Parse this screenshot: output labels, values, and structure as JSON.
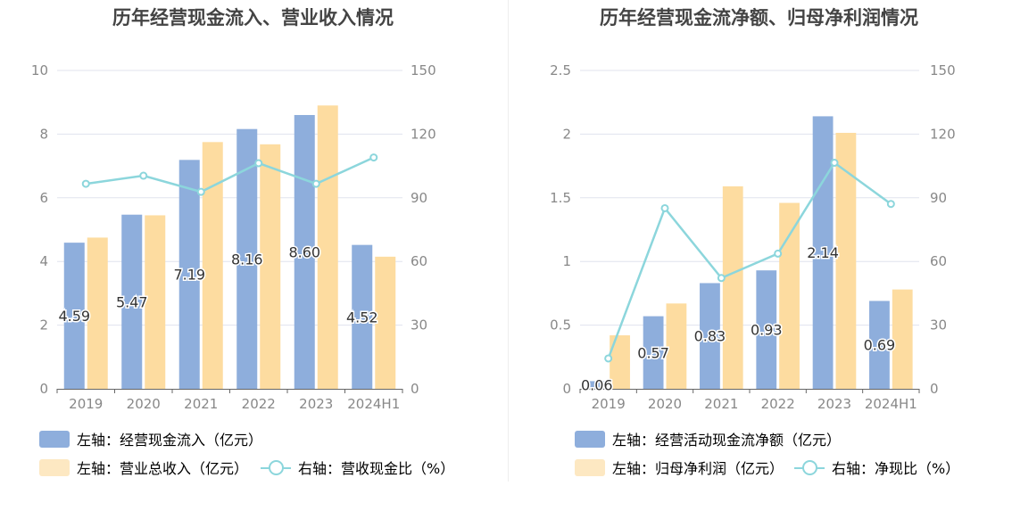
{
  "charts": [
    {
      "title": "历年经营现金流入、营业收入情况",
      "legend": [
        {
          "label": "左轴：经营现金流入（亿元）",
          "kind": "bar",
          "color": "#8eaedc"
        },
        {
          "label": "左轴：营业总收入（亿元）",
          "kind": "bar",
          "color": "#fde4b3"
        },
        {
          "label": "右轴：营收现金比（%）",
          "kind": "line",
          "color": "#8cd6dc"
        }
      ]
    },
    {
      "title": "历年经营现金流净额、归母净利润情况",
      "legend": [
        {
          "label": "左轴：经营活动现金流净额（亿元）",
          "kind": "bar",
          "color": "#8eaedc"
        },
        {
          "label": "左轴：归母净利润（亿元）",
          "kind": "bar",
          "color": "#fde4b3"
        },
        {
          "label": "右轴：净现比（%）",
          "kind": "line",
          "color": "#8cd6dc"
        }
      ]
    }
  ],
  "chart_data": [
    {
      "type": "bar",
      "title": "历年经营现金流入、营业收入情况",
      "categories": [
        "2019",
        "2020",
        "2021",
        "2022",
        "2023",
        "2024H1"
      ],
      "y_left": {
        "range": [
          0,
          10
        ],
        "ticks": [
          "0",
          "2",
          "4",
          "6",
          "8",
          "10"
        ]
      },
      "y_right": {
        "range": [
          0,
          150
        ],
        "ticks": [
          "0",
          "30",
          "60",
          "90",
          "120",
          "150"
        ]
      },
      "series": [
        {
          "name": "左轴：经营现金流入（亿元）",
          "type": "bar",
          "axis": "left",
          "color": "#8eaedc",
          "values": [
            4.59,
            5.47,
            7.19,
            8.16,
            8.6,
            4.52
          ],
          "labels": [
            "4.59",
            "5.47",
            "7.19",
            "8.16",
            "8.60",
            "4.52"
          ]
        },
        {
          "name": "左轴：营业总收入（亿元）",
          "type": "bar",
          "axis": "left",
          "color": "#fddca0",
          "values": [
            4.75,
            5.45,
            7.75,
            7.68,
            8.9,
            4.15
          ]
        },
        {
          "name": "右轴：营收现金比（%）",
          "type": "line",
          "axis": "right",
          "color": "#8cd6dc",
          "values": [
            96.6,
            100.4,
            92.8,
            106.3,
            96.6,
            109.0
          ]
        }
      ],
      "grid": true,
      "legend_position": "bottom-left"
    },
    {
      "type": "bar",
      "title": "历年经营现金流净额、归母净利润情况",
      "categories": [
        "2019",
        "2020",
        "2021",
        "2022",
        "2023",
        "2024H1"
      ],
      "y_left": {
        "range": [
          0,
          2.5
        ],
        "ticks": [
          "0",
          "0.5",
          "1",
          "1.5",
          "2",
          "2.5"
        ]
      },
      "y_right": {
        "range": [
          0,
          150
        ],
        "ticks": [
          "0",
          "30",
          "60",
          "90",
          "120",
          "150"
        ]
      },
      "series": [
        {
          "name": "左轴：经营活动现金流净额（亿元）",
          "type": "bar",
          "axis": "left",
          "color": "#8eaedc",
          "values": [
            0.06,
            0.57,
            0.83,
            0.93,
            2.14,
            0.69
          ],
          "labels": [
            "0.06",
            "0.57",
            "0.83",
            "0.93",
            "2.14",
            "0.69"
          ]
        },
        {
          "name": "左轴：归母净利润（亿元）",
          "type": "bar",
          "axis": "left",
          "color": "#fddca0",
          "values": [
            0.42,
            0.67,
            1.59,
            1.46,
            2.01,
            0.78
          ]
        },
        {
          "name": "右轴：净现比（%）",
          "type": "line",
          "axis": "right",
          "color": "#8cd6dc",
          "values": [
            14.3,
            85.1,
            52.2,
            63.7,
            106.5,
            87.1
          ]
        }
      ],
      "grid": true,
      "legend_position": "bottom-left"
    }
  ]
}
